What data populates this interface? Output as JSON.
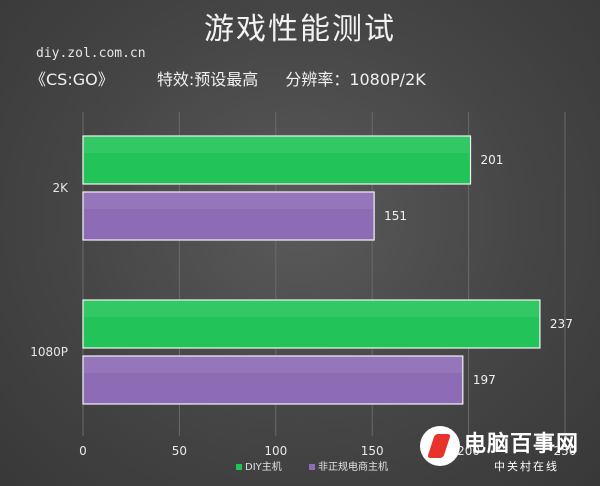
{
  "header": {
    "title": "游戏性能测试",
    "site": "diy.zol.com.cn",
    "game": "《CS:GO》",
    "effects": "特效:预设最高",
    "resolution": "分辨率：1080P/2K"
  },
  "watermark": {
    "brand": "电脑百事网",
    "sub": "中关村在线"
  },
  "colors": {
    "diy": "#22c45a",
    "non_standard": "#8e6bb5"
  },
  "chart_data": {
    "type": "bar",
    "orientation": "horizontal",
    "categories": [
      "2K",
      "1080P"
    ],
    "series": [
      {
        "name": "DIY主机",
        "values": [
          201,
          237
        ]
      },
      {
        "name": "非正规电商主机",
        "values": [
          151,
          197
        ]
      }
    ],
    "xlim": [
      0,
      250
    ],
    "xticks": [
      0,
      50,
      100,
      150,
      200,
      250
    ],
    "grid": true,
    "legend": "bottom"
  }
}
